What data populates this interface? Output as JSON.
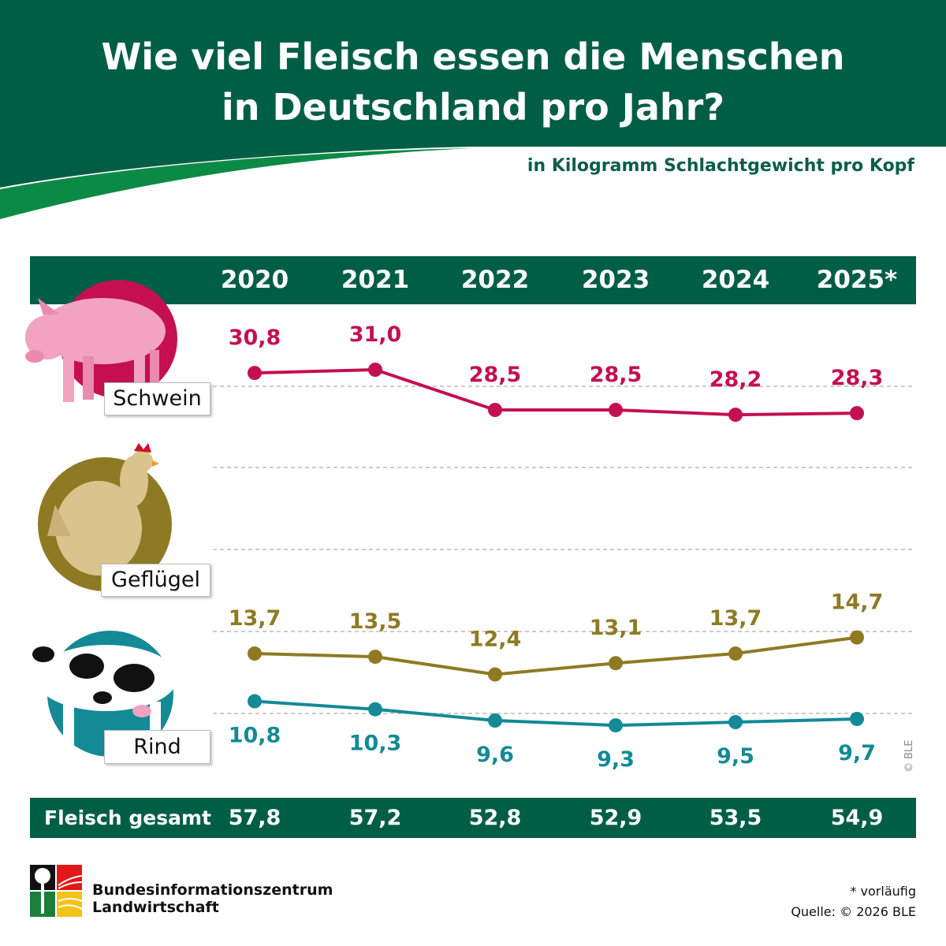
{
  "title_line1": "Wie viel Fleisch essen die Menschen",
  "title_line2": "in Deutschland pro Jahr?",
  "subtitle": "in Kilogramm Schlachtgewicht pro Kopf",
  "colors": {
    "header": "#005e45",
    "swoosh": "#0a8a45",
    "schwein": "#c4104f",
    "gefluegel": "#8f7a24",
    "rind": "#138a96"
  },
  "chart_data": {
    "type": "line",
    "categories": [
      "2020",
      "2021",
      "2022",
      "2023",
      "2024",
      "2025*"
    ],
    "series": [
      {
        "name": "Schwein",
        "labels": [
          "30,8",
          "31,0",
          "28,5",
          "28,5",
          "28,2",
          "28,3"
        ],
        "values": [
          30.8,
          31.0,
          28.5,
          28.5,
          28.2,
          28.3
        ],
        "color": "#c4104f",
        "icon": "pig-icon"
      },
      {
        "name": "Geflügel",
        "labels": [
          "13,7",
          "13,5",
          "12,4",
          "13,1",
          "13,7",
          "14,7"
        ],
        "values": [
          13.7,
          13.5,
          12.4,
          13.1,
          13.7,
          14.7
        ],
        "color": "#8f7a24",
        "icon": "chicken-icon"
      },
      {
        "name": "Rind",
        "labels": [
          "10,8",
          "10,3",
          "9,6",
          "9,3",
          "9,5",
          "9,7"
        ],
        "values": [
          10.8,
          10.3,
          9.6,
          9.3,
          9.5,
          9.7
        ],
        "color": "#138a96",
        "icon": "cow-icon"
      }
    ],
    "total": {
      "label": "Fleisch gesamt",
      "values": [
        "57,8",
        "57,2",
        "52,8",
        "52,9",
        "53,5",
        "54,9"
      ]
    },
    "grid": true
  },
  "footer": {
    "org_line1": "Bundesinformationszentrum",
    "org_line2": "Landwirtschaft",
    "note": "* vorläufig",
    "source": "Quelle: © 2026 BLE",
    "copyright": "© BLE"
  }
}
